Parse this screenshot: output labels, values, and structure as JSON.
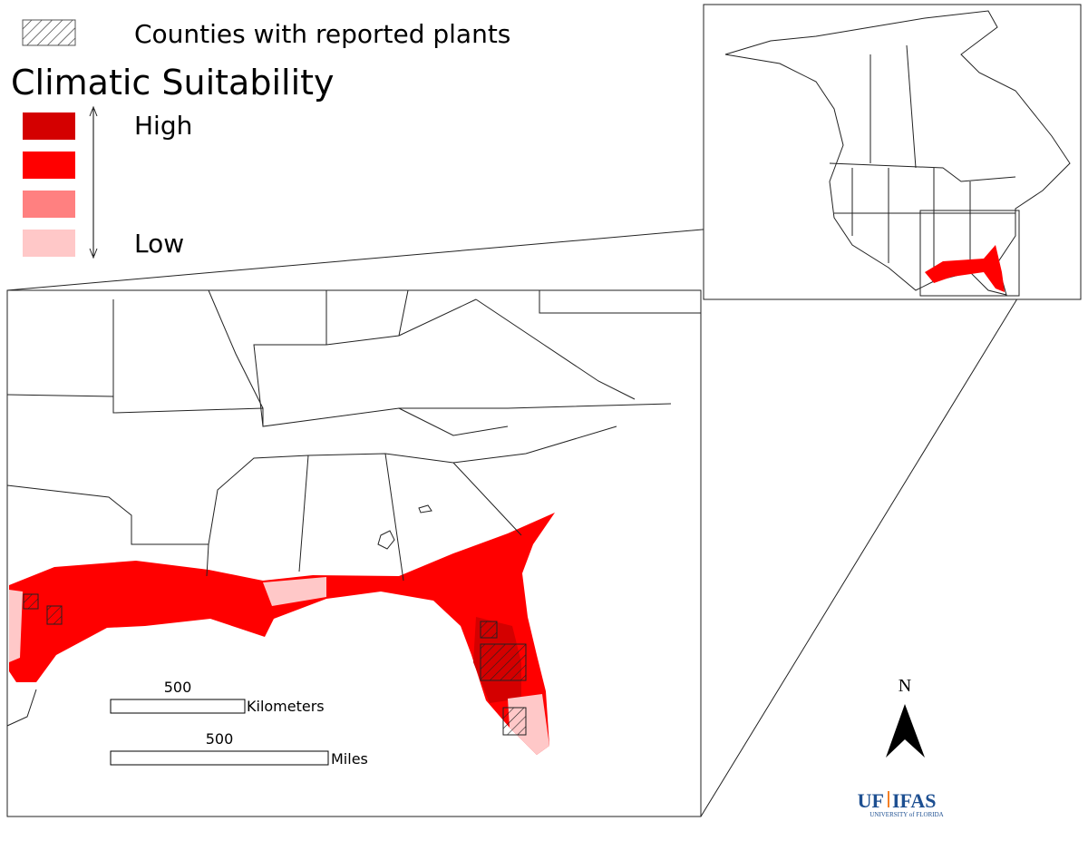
{
  "legend": {
    "hatch_label": "Counties with reported plants",
    "title": "Climatic Suitability",
    "high": "High",
    "low": "Low",
    "colors": [
      "#d40000",
      "#ff0000",
      "#ff8080",
      "#ffc8c8"
    ]
  },
  "scale_bars": [
    {
      "value": 500,
      "unit": "Kilometers"
    },
    {
      "value": 500,
      "unit": "Miles"
    }
  ],
  "north": "N",
  "logo": {
    "left": "UF",
    "right": "IFAS",
    "sub": "UNIVERSITY of FLORIDA"
  }
}
